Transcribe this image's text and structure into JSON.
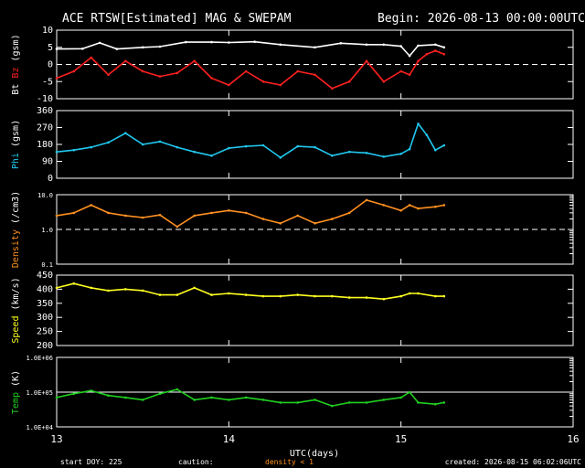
{
  "header": {
    "title": "ACE RTSW[Estimated] MAG & SWEPAM",
    "begin": "Begin: 2026-08-13 00:00:00UTC"
  },
  "footer": {
    "start_doy": "start DOY: 225",
    "caution": "caution:",
    "density_note": "density < 1",
    "created": "created: 2026-08-15 06:02:06UTC"
  },
  "xaxis": {
    "label": "UTC(days)",
    "ticks": [
      "13",
      "14",
      "15",
      "16"
    ],
    "range": [
      13,
      16
    ],
    "data_end": 15.25
  },
  "colors": {
    "bt": "#ffffff",
    "bz": "#ff2020",
    "phi": "#20c8f0",
    "density": "#ff9020",
    "speed": "#ffff20",
    "temp": "#20d020"
  },
  "chart_data": [
    {
      "type": "line",
      "ylabel_parts": [
        "Bt",
        "Bz",
        "(gsm)"
      ],
      "ylim": [
        -10,
        10
      ],
      "yticks": [
        "10",
        "5",
        "0",
        "-5",
        "-10"
      ],
      "reference_line": {
        "y": 0,
        "style": "dashed"
      },
      "series": [
        {
          "name": "Bt",
          "x": [
            13.0,
            13.15,
            13.25,
            13.35,
            13.5,
            13.6,
            13.75,
            13.9,
            14.0,
            14.15,
            14.3,
            14.5,
            14.65,
            14.8,
            14.9,
            15.0,
            15.05,
            15.1,
            15.2,
            15.25
          ],
          "y": [
            4.5,
            4.6,
            6.3,
            4.5,
            5.0,
            5.2,
            6.5,
            6.5,
            6.4,
            6.6,
            5.8,
            5.0,
            6.2,
            5.8,
            5.8,
            5.3,
            2.5,
            5.5,
            5.8,
            5.0
          ]
        },
        {
          "name": "Bz",
          "x": [
            13.0,
            13.1,
            13.2,
            13.3,
            13.4,
            13.5,
            13.6,
            13.7,
            13.8,
            13.9,
            14.0,
            14.1,
            14.2,
            14.3,
            14.4,
            14.5,
            14.6,
            14.7,
            14.8,
            14.9,
            15.0,
            15.05,
            15.1,
            15.15,
            15.2,
            15.25
          ],
          "y": [
            -4.0,
            -2.0,
            2.0,
            -3.0,
            1.0,
            -2.0,
            -3.5,
            -2.5,
            1.0,
            -4.0,
            -6.0,
            -2.0,
            -5.0,
            -6.0,
            -2.0,
            -3.0,
            -7.0,
            -5.0,
            1.0,
            -5.0,
            -2.0,
            -3.0,
            1.0,
            3.0,
            4.0,
            3.0
          ]
        }
      ]
    },
    {
      "type": "line",
      "ylabel_parts": [
        "Phi",
        "(gsm)"
      ],
      "ylim": [
        0,
        360
      ],
      "yticks": [
        "360",
        "270",
        "180",
        "90",
        "0"
      ],
      "series": [
        {
          "name": "Phi",
          "x": [
            13.0,
            13.1,
            13.2,
            13.3,
            13.4,
            13.5,
            13.6,
            13.7,
            13.8,
            13.9,
            14.0,
            14.1,
            14.2,
            14.3,
            14.4,
            14.5,
            14.6,
            14.7,
            14.8,
            14.9,
            15.0,
            15.05,
            15.1,
            15.15,
            15.2,
            15.25
          ],
          "y": [
            140,
            150,
            165,
            190,
            240,
            180,
            195,
            165,
            140,
            120,
            160,
            170,
            175,
            110,
            170,
            165,
            120,
            140,
            135,
            115,
            130,
            155,
            290,
            230,
            150,
            175
          ]
        }
      ]
    },
    {
      "type": "line",
      "ylabel_parts": [
        "Density",
        "(/cm3)"
      ],
      "yscale": "log",
      "ylim": [
        0.1,
        10
      ],
      "yticks": [
        "10.0",
        "1.0",
        "0.1"
      ],
      "reference_line": {
        "y": 1,
        "style": "dashed"
      },
      "series": [
        {
          "name": "Density",
          "x": [
            13.0,
            13.1,
            13.2,
            13.3,
            13.4,
            13.5,
            13.6,
            13.7,
            13.8,
            13.9,
            14.0,
            14.1,
            14.2,
            14.3,
            14.4,
            14.5,
            14.6,
            14.7,
            14.8,
            14.9,
            15.0,
            15.05,
            15.1,
            15.2,
            15.25
          ],
          "y": [
            2.5,
            3.0,
            5.0,
            3.0,
            2.5,
            2.2,
            2.6,
            1.2,
            2.5,
            3.0,
            3.5,
            3.0,
            2.0,
            1.5,
            2.5,
            1.5,
            2.0,
            3.0,
            7.0,
            5.0,
            3.5,
            5.0,
            4.0,
            4.5,
            5.0
          ]
        }
      ]
    },
    {
      "type": "line",
      "ylabel_parts": [
        "Speed",
        "(km/s)"
      ],
      "ylim": [
        200,
        450
      ],
      "yticks": [
        "450",
        "400",
        "350",
        "300",
        "250",
        "200"
      ],
      "series": [
        {
          "name": "Speed",
          "x": [
            13.0,
            13.1,
            13.2,
            13.3,
            13.4,
            13.5,
            13.6,
            13.7,
            13.8,
            13.9,
            14.0,
            14.1,
            14.2,
            14.3,
            14.4,
            14.5,
            14.6,
            14.7,
            14.8,
            14.9,
            15.0,
            15.05,
            15.1,
            15.2,
            15.25
          ],
          "y": [
            405,
            420,
            405,
            395,
            400,
            395,
            380,
            380,
            405,
            380,
            385,
            380,
            375,
            375,
            380,
            375,
            375,
            370,
            370,
            365,
            375,
            385,
            385,
            375,
            375
          ]
        }
      ]
    },
    {
      "type": "line",
      "ylabel_parts": [
        "Temp",
        "(K)"
      ],
      "yscale": "log",
      "ylim": [
        10000,
        1000000
      ],
      "yticks": [
        "1.0E+06",
        "1.0E+05",
        "1.0E+04"
      ],
      "reference_line": {
        "y": 100000,
        "style": "solid"
      },
      "series": [
        {
          "name": "Temp",
          "x": [
            13.0,
            13.1,
            13.2,
            13.3,
            13.4,
            13.5,
            13.6,
            13.7,
            13.8,
            13.9,
            14.0,
            14.1,
            14.2,
            14.3,
            14.4,
            14.5,
            14.6,
            14.7,
            14.8,
            14.9,
            15.0,
            15.05,
            15.1,
            15.2,
            15.25
          ],
          "y": [
            70000,
            90000,
            110000,
            80000,
            70000,
            60000,
            90000,
            120000,
            60000,
            70000,
            60000,
            70000,
            60000,
            50000,
            50000,
            60000,
            40000,
            50000,
            50000,
            60000,
            70000,
            100000,
            50000,
            45000,
            50000
          ]
        }
      ]
    }
  ]
}
